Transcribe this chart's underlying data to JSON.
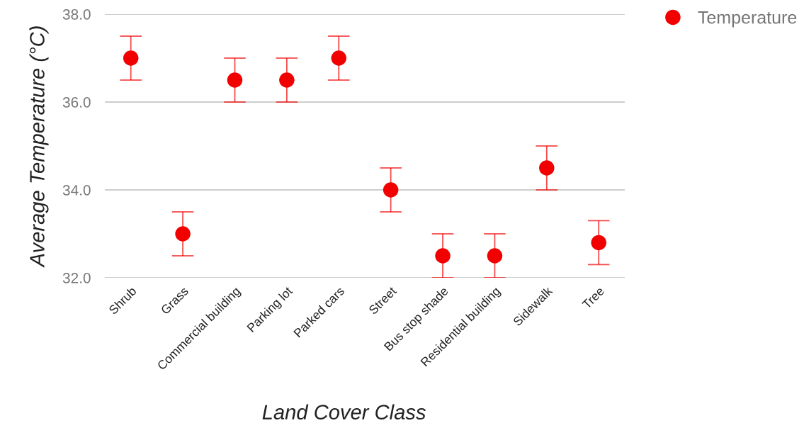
{
  "chart_data": {
    "type": "scatter",
    "xlabel": "Land Cover Class",
    "ylabel": "Average Temperature (°C)",
    "categories": [
      "Shrub",
      "Grass",
      "Commercial building",
      "Parking lot",
      "Parked cars",
      "Street",
      "Bus stop shade",
      "Residential building",
      "Sidewalk",
      "Tree"
    ],
    "series": [
      {
        "name": "Temperature",
        "color": "#f20000",
        "values": [
          37.0,
          33.0,
          36.5,
          36.5,
          37.0,
          34.0,
          32.5,
          32.5,
          34.5,
          32.8
        ],
        "errors": [
          0.5,
          0.5,
          0.5,
          0.5,
          0.5,
          0.5,
          0.5,
          0.5,
          0.5,
          0.5
        ]
      }
    ],
    "ylim": [
      32,
      38
    ],
    "yticks": [
      {
        "value": 32,
        "label": "32.0"
      },
      {
        "value": 34,
        "label": "34.0"
      },
      {
        "value": 36,
        "label": "36.0"
      },
      {
        "value": 38,
        "label": "38.0"
      }
    ],
    "grid": "y",
    "legend": "top right",
    "marker": "circle"
  }
}
